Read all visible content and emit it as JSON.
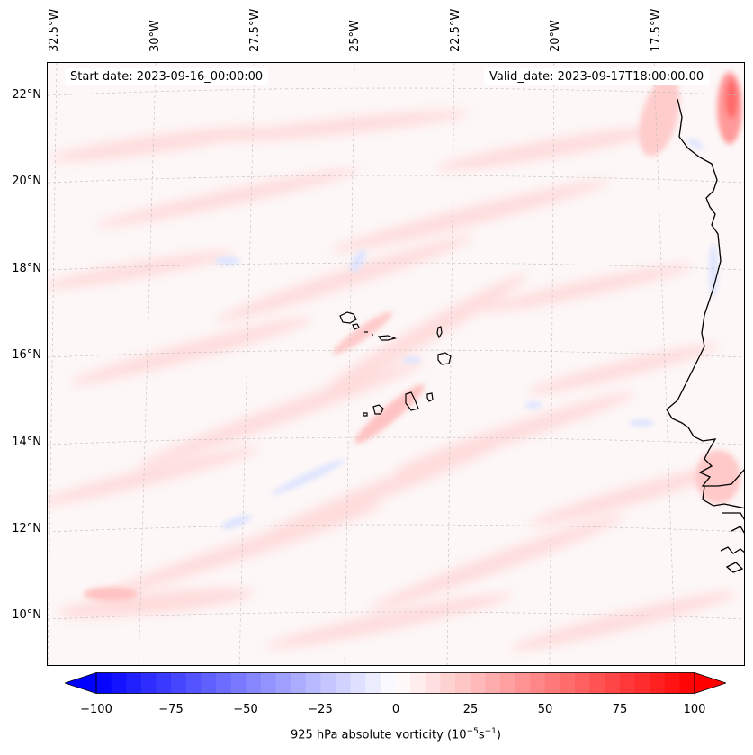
{
  "header": {
    "start_date": "Start date: 2023-09-16_00:00:00",
    "valid_date": "Valid_date: 2023-09-17T18:00:00.00"
  },
  "map": {
    "lon_labels": [
      "32.5°W",
      "30°W",
      "27.5°W",
      "25°W",
      "22.5°W",
      "20°W",
      "17.5°W"
    ],
    "lat_labels": [
      "22°N",
      "20°N",
      "18°N",
      "16°N",
      "14°N",
      "12°N",
      "10°N"
    ],
    "background_color": "#fdf7f7",
    "coastline_color": "#000000"
  },
  "colorbar": {
    "tick_labels": [
      "−100",
      "−75",
      "−50",
      "−25",
      "0",
      "25",
      "50",
      "75",
      "100"
    ],
    "label": "925 hPa absolute vorticity (10",
    "label_exp1": "−5",
    "label_mid": "s",
    "label_exp2": "−1",
    "label_end": ")",
    "cmap_low": "#0000ff",
    "cmap_mid": "#ffffff",
    "cmap_high": "#ff0000",
    "extend": "both"
  }
}
